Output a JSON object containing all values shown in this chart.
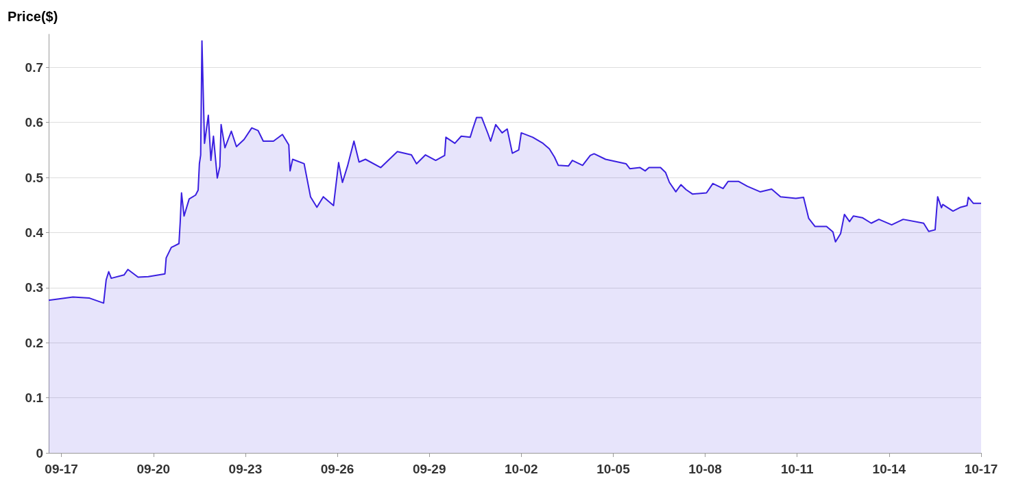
{
  "chart_data": {
    "type": "area",
    "ylabel": "Price($)",
    "xlim": [
      "--09-16T14:00",
      "--10-17T00:00"
    ],
    "ylim": [
      0,
      0.76
    ],
    "xticks": [
      {
        "value": "--09-17",
        "label": "09-17"
      },
      {
        "value": "--09-20",
        "label": "09-20"
      },
      {
        "value": "--09-23",
        "label": "09-23"
      },
      {
        "value": "--09-26",
        "label": "09-26"
      },
      {
        "value": "--09-29",
        "label": "09-29"
      },
      {
        "value": "--10-02",
        "label": "10-02"
      },
      {
        "value": "--10-05",
        "label": "10-05"
      },
      {
        "value": "--10-08",
        "label": "10-08"
      },
      {
        "value": "--10-11",
        "label": "10-11"
      },
      {
        "value": "--10-14",
        "label": "10-14"
      },
      {
        "value": "--10-17",
        "label": "10-17"
      }
    ],
    "yticks": [
      0,
      0.1,
      0.2,
      0.3,
      0.4,
      0.5,
      0.6,
      0.7
    ],
    "grid": "y",
    "x": [
      "--09-16T14:00",
      "--09-17T09:00",
      "--09-17T22:00",
      "--09-18T09:00",
      "--09-18T11:00",
      "--09-18T13:00",
      "--09-18T15:00",
      "--09-19T01:00",
      "--09-19T04:00",
      "--09-19T12:00",
      "--09-19T20:00",
      "--09-20T09:00",
      "--09-20T10:00",
      "--09-20T14:00",
      "--09-20T20:00",
      "--09-20T21:00",
      "--09-20T22:00",
      "--09-21T00:00",
      "--09-21T04:00",
      "--09-21T09:00",
      "--09-21T11:00",
      "--09-21T12:00",
      "--09-21T13:00",
      "--09-21T14:00",
      "--09-21T16:00",
      "--09-21T19:00",
      "--09-21T21:00",
      "--09-21T23:00",
      "--09-22T02:00",
      "--09-22T04:00",
      "--09-22T05:00",
      "--09-22T08:00",
      "--09-22T13:00",
      "--09-22T17:00",
      "--09-22T23:00",
      "--09-23T05:00",
      "--09-23T10:00",
      "--09-23T14:00",
      "--09-23T22:00",
      "--09-24T05:00",
      "--09-24T10:00",
      "--09-24T11:00",
      "--09-24T13:00",
      "--09-24T22:00",
      "--09-25T03:00",
      "--09-25T08:00",
      "--09-25T13:00",
      "--09-25T21:00",
      "--09-26T01:00",
      "--09-26T04:00",
      "--09-26T08:00",
      "--09-26T13:00",
      "--09-26T17:00",
      "--09-26T22:00",
      "--09-27T10:00",
      "--09-27T23:00",
      "--09-28T10:00",
      "--09-28T14:00",
      "--09-28T21:00",
      "--09-29T05:00",
      "--09-29T12:00",
      "--09-29T13:00",
      "--09-29T20:00",
      "--09-30T01:00",
      "--09-30T08:00",
      "--09-30T10:00",
      "--09-30T13:00",
      "--09-30T17:00",
      "--09-30T22:00",
      "--10-01T00:00",
      "--10-01T04:00",
      "--10-01T09:00",
      "--10-01T13:00",
      "--10-01T17:00",
      "--10-01T22:00",
      "--10-02T00:00",
      "--10-02T09:00",
      "--10-02T17:00",
      "--10-02T22:00",
      "--10-03T02:00",
      "--10-03T05:00",
      "--10-03T13:00",
      "--10-03T16:00",
      "--10-04T00:00",
      "--10-04T06:00",
      "--10-04T09:00",
      "--10-04T18:00",
      "--10-05T10:00",
      "--10-05T13:00",
      "--10-05T21:00",
      "--10-06T01:00",
      "--10-06T04:00",
      "--10-06T13:00",
      "--10-06T17:00",
      "--10-06T20:00",
      "--10-07T01:00",
      "--10-07T05:00",
      "--10-07T09:00",
      "--10-07T14:00",
      "--10-08T01:00",
      "--10-08T06:00",
      "--10-08T14:00",
      "--10-08T18:00",
      "--10-09T02:00",
      "--10-09T09:00",
      "--10-09T19:00",
      "--10-10T04:00",
      "--10-10T11:00",
      "--10-10T23:00",
      "--10-11T05:00",
      "--10-11T09:00",
      "--10-11T14:00",
      "--10-11T23:00",
      "--10-12T04:00",
      "--10-12T06:00",
      "--10-12T10:00",
      "--10-12T13:00",
      "--10-12T17:00",
      "--10-12T20:00",
      "--10-13T03:00",
      "--10-13T10:00",
      "--10-13T16:00",
      "--10-14T02:00",
      "--10-14T11:00",
      "--10-15T03:00",
      "--10-15T07:00",
      "--10-15T12:00",
      "--10-15T14:00",
      "--10-15T17:00",
      "--10-15T18:00",
      "--10-16T02:00",
      "--10-16T08:00",
      "--10-16T13:00",
      "--10-16T14:00",
      "--10-16T18:00",
      "--10-17T00:00"
    ],
    "series": [
      {
        "color": "#3a1fe0",
        "values": [
          0.277,
          0.283,
          0.281,
          0.272,
          0.314,
          0.329,
          0.317,
          0.323,
          0.333,
          0.319,
          0.32,
          0.325,
          0.354,
          0.373,
          0.38,
          0.42,
          0.472,
          0.43,
          0.461,
          0.468,
          0.477,
          0.525,
          0.541,
          0.748,
          0.562,
          0.613,
          0.531,
          0.575,
          0.499,
          0.52,
          0.596,
          0.554,
          0.584,
          0.556,
          0.569,
          0.59,
          0.585,
          0.566,
          0.566,
          0.578,
          0.559,
          0.512,
          0.533,
          0.525,
          0.465,
          0.446,
          0.465,
          0.449,
          0.527,
          0.491,
          0.521,
          0.566,
          0.528,
          0.533,
          0.518,
          0.547,
          0.541,
          0.525,
          0.541,
          0.531,
          0.54,
          0.573,
          0.562,
          0.575,
          0.573,
          0.588,
          0.609,
          0.609,
          0.579,
          0.566,
          0.596,
          0.581,
          0.588,
          0.544,
          0.55,
          0.581,
          0.573,
          0.562,
          0.552,
          0.537,
          0.522,
          0.521,
          0.531,
          0.522,
          0.54,
          0.543,
          0.533,
          0.525,
          0.516,
          0.518,
          0.512,
          0.518,
          0.518,
          0.509,
          0.491,
          0.474,
          0.487,
          0.478,
          0.47,
          0.472,
          0.489,
          0.48,
          0.493,
          0.493,
          0.484,
          0.474,
          0.479,
          0.465,
          0.462,
          0.464,
          0.426,
          0.411,
          0.411,
          0.401,
          0.383,
          0.398,
          0.433,
          0.42,
          0.43,
          0.427,
          0.417,
          0.424,
          0.414,
          0.424,
          0.417,
          0.402,
          0.405,
          0.465,
          0.445,
          0.451,
          0.439,
          0.446,
          0.449,
          0.464,
          0.453,
          0.453
        ]
      }
    ]
  }
}
